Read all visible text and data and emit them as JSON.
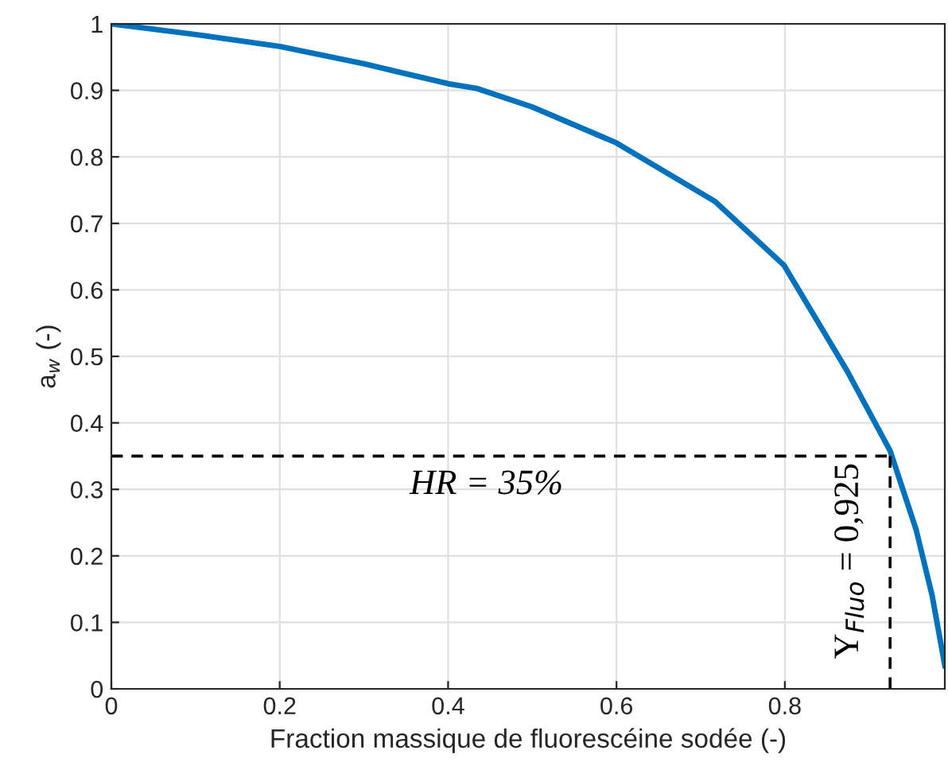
{
  "chart_data": {
    "type": "line",
    "xlabel": "Fraction massique de fluorescéine sodée (-)",
    "ylabel": "a$_{w}$ (-)",
    "xlim": [
      0,
      0.99
    ],
    "ylim": [
      0,
      1
    ],
    "xticks": [
      0,
      0.2,
      0.4,
      0.6,
      0.8
    ],
    "yticks": [
      0,
      0.1,
      0.2,
      0.3,
      0.4,
      0.5,
      0.6,
      0.7,
      0.8,
      0.9,
      1
    ],
    "grid": true,
    "series": [
      {
        "color": "#0072bd",
        "line_style": "solid",
        "x": [
          0,
          0.1,
          0.2,
          0.3,
          0.4,
          0.434,
          0.5,
          0.6,
          0.717,
          0.799,
          0.874,
          0.925,
          0.956,
          0.975,
          0.99
        ],
        "values": [
          1,
          0.984,
          0.966,
          0.94,
          0.91,
          0.903,
          0.875,
          0.821,
          0.733,
          0.637,
          0.478,
          0.358,
          0.239,
          0.14,
          0.035
        ]
      },
      {
        "color": "#000000",
        "line_style": "dashed",
        "x": [
          0,
          0.925
        ],
        "values": [
          0.35,
          0.35
        ]
      },
      {
        "color": "#000000",
        "line_style": "dashed",
        "x": [
          0.925,
          0.925
        ],
        "values": [
          0,
          0.35
        ]
      }
    ],
    "annotations": [
      "HR = 35%",
      "Y$_{Fluo}$ = 0,925"
    ]
  }
}
